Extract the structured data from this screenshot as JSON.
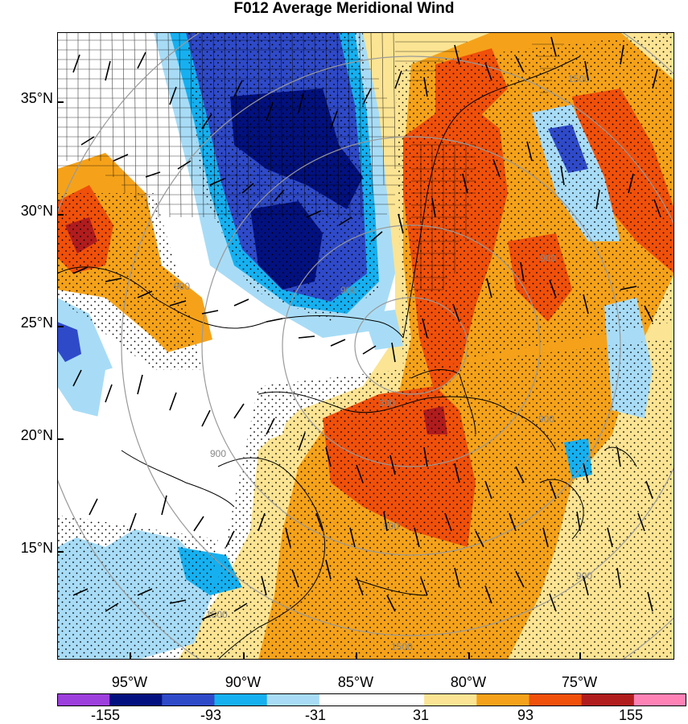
{
  "title": "F012 Average Meridional Wind",
  "lat_labels": [
    "35°N",
    "30°N",
    "25°N",
    "20°N",
    "15°N"
  ],
  "lon_labels": [
    "95°W",
    "90°W",
    "85°W",
    "80°W",
    "75°W"
  ],
  "contour_labels": [
    "1500",
    "900",
    "900",
    "900",
    "300",
    "900",
    "900",
    "900",
    "900",
    "1500",
    "1500"
  ],
  "colorbar": {
    "labels": [
      "-155",
      "-93",
      "-31",
      "31",
      "93",
      "155"
    ],
    "colors": [
      "#9d3fdc",
      "#02117f",
      "#2f4ac9",
      "#16b0f0",
      "#a8dcf6",
      "#ffffff",
      "#ffffff",
      "#fbe493",
      "#f5a21a",
      "#f0500a",
      "#b11c1d",
      "#ff82b6"
    ]
  },
  "palette": {
    "deep_blue": "#02117f",
    "blue": "#2f4ac9",
    "cyan": "#16b0f0",
    "light_blue": "#a8dcf6",
    "light_yellow": "#fbe493",
    "orange": "#f5a21a",
    "red_orange": "#f0500a",
    "dark_red": "#b11c1d"
  }
}
